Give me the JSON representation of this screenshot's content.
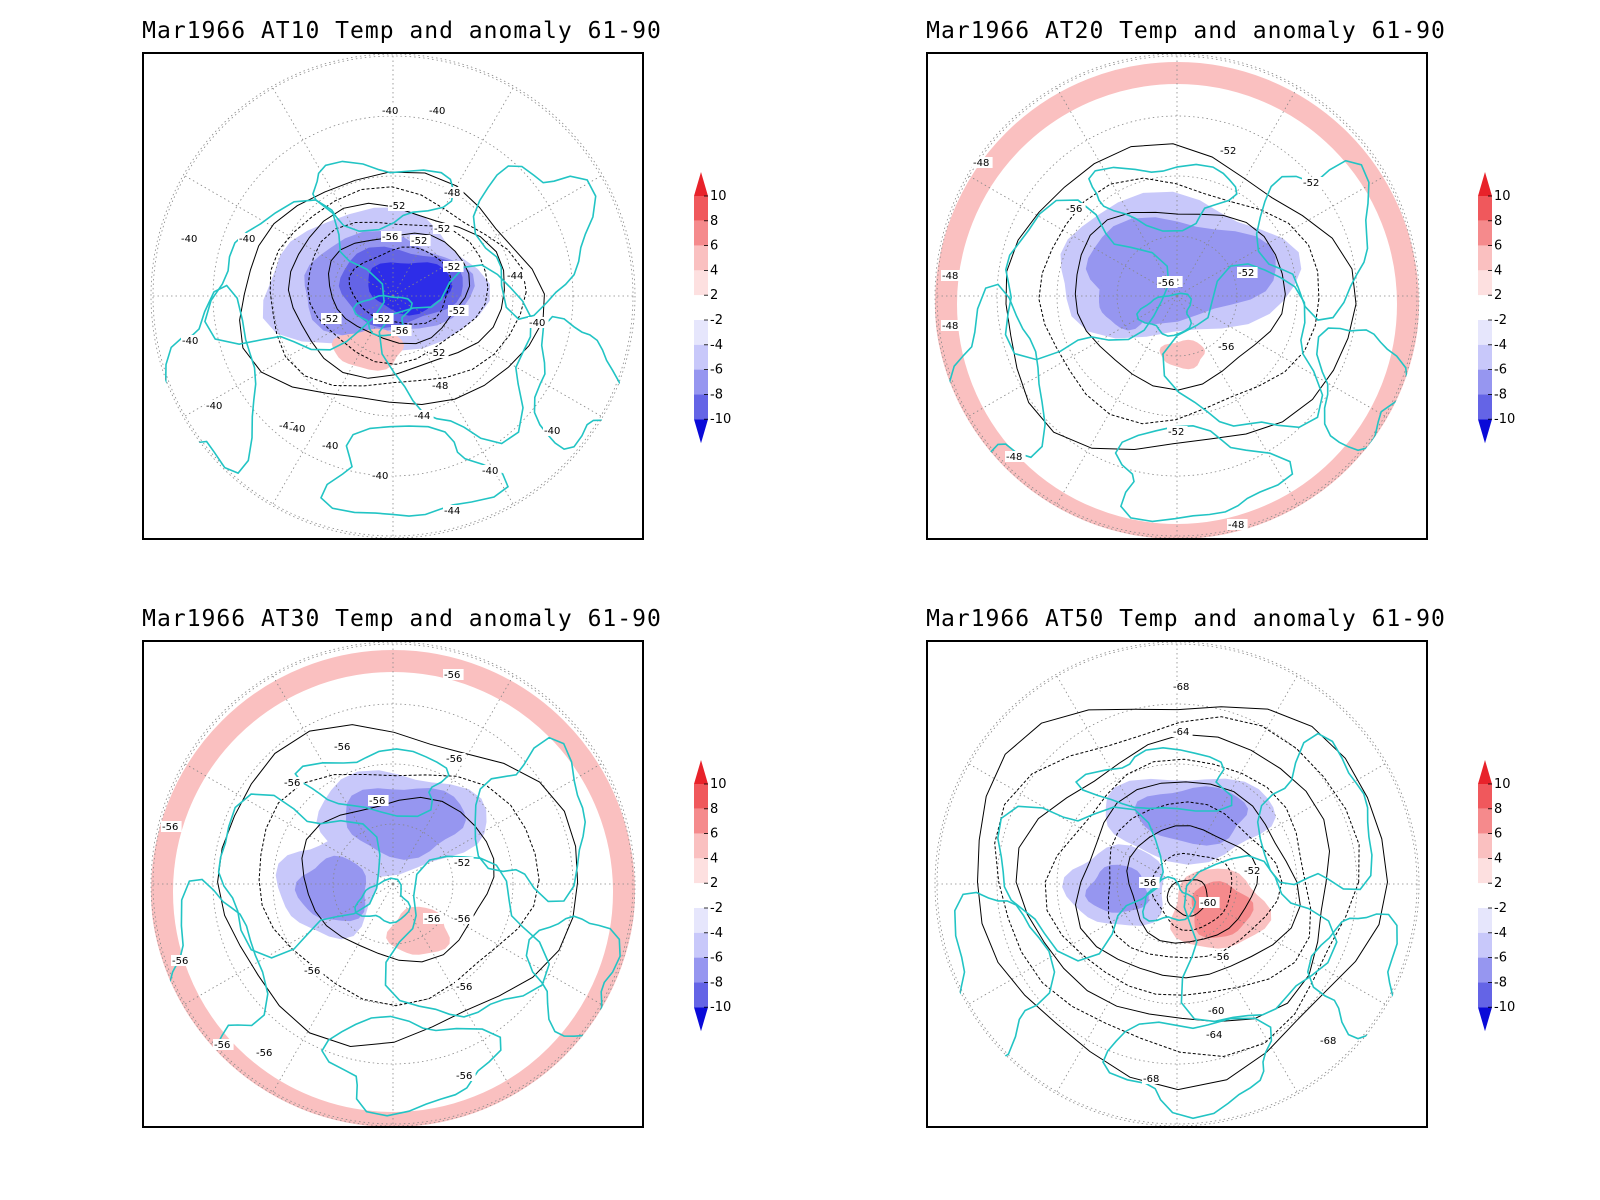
{
  "panels": [
    {
      "title": "Mar1966 AT10 Temp and anomaly 61-90",
      "contour_labels": [
        "-40",
        "-40",
        "-48",
        "-52",
        "-52",
        "-56",
        "-52",
        "-52",
        "-44",
        "-52",
        "-40",
        "-40",
        "-52",
        "-52",
        "-56",
        "-52",
        "-40",
        "-40",
        "-48",
        "-44",
        "-40",
        "-40",
        "-40",
        "-40",
        "-40",
        "-44",
        "-40",
        "-40"
      ]
    },
    {
      "title": "Mar1966 AT20 Temp and anomaly 61-90",
      "contour_labels": [
        "-52",
        "-48",
        "-52",
        "-56",
        "-52",
        "-52",
        "-56",
        "-56",
        "-52",
        "-48",
        "-48",
        "-48",
        "-48"
      ]
    },
    {
      "title": "Mar1966 AT30 Temp and anomaly 61-90",
      "contour_labels": [
        "-56",
        "-56",
        "-56",
        "-56",
        "-56",
        "-52",
        "-56",
        "-56",
        "-56",
        "-56",
        "-56",
        "-56",
        "-56",
        "-56",
        "-56"
      ]
    },
    {
      "title": "Mar1966 AT50 Temp and anomaly 61-90",
      "contour_labels": [
        "-68",
        "-64",
        "-52",
        "-56",
        "-60",
        "-56",
        "-60",
        "-64",
        "-68",
        "-68"
      ]
    }
  ],
  "colorbar": {
    "labels": [
      "10",
      "8",
      "6",
      "4",
      "2",
      "-2",
      "-4",
      "-6",
      "-8",
      "-10"
    ],
    "colors": [
      "#e8222a",
      "#f0585c",
      "#f58a8c",
      "#fac0c0",
      "#ffffff",
      "#ffffff",
      "#c8c8fa",
      "#9696f0",
      "#6464e6",
      "#2d2de8",
      "#0a0ad8"
    ]
  },
  "colors": {
    "coastline": "#22c4c4",
    "contour": "#000000",
    "grid": "#888888"
  }
}
